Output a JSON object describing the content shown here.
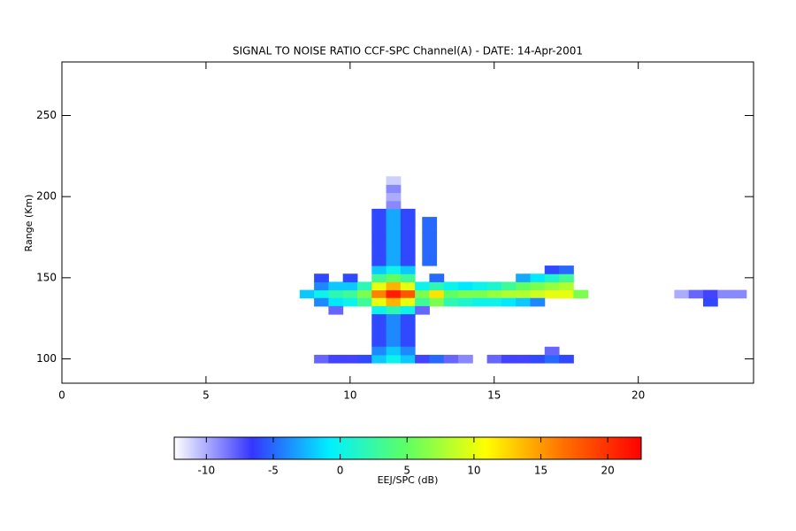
{
  "chart_data": {
    "type": "heatmap",
    "title": "SIGNAL TO NOISE RATIO CCF-SPC Channel(A) - DATE: 14-Apr-2001",
    "y_label": "Range (Km)",
    "xlim": [
      0,
      24
    ],
    "ylim": [
      85,
      283
    ],
    "xticks": [
      0,
      5,
      10,
      15,
      20
    ],
    "yticks": [
      100,
      150,
      200,
      250
    ],
    "cells": {
      "x": [
        8.5,
        9,
        9.5,
        10,
        10.5,
        11,
        11.5,
        12,
        12.5,
        13,
        13.5,
        14,
        14.5,
        15,
        15.5,
        16,
        16.5,
        17,
        17.5,
        18,
        9,
        9.5,
        10,
        10.5,
        11,
        11.5,
        12,
        12.5,
        13,
        13.5,
        14,
        14.5,
        15,
        15.5,
        16,
        16.5,
        17,
        17.5,
        9,
        10,
        11,
        11.5,
        12,
        13,
        16,
        16.5,
        17,
        17.5,
        11,
        11.5,
        12,
        17,
        17.5,
        9,
        9.5,
        10,
        10.5,
        11,
        11.5,
        12,
        12.5,
        13,
        13.5,
        14,
        14.5,
        15,
        15.5,
        16,
        16.5,
        9.5,
        11,
        11.5,
        12,
        12.5,
        11,
        11.5,
        12,
        11,
        11.5,
        12,
        11,
        11.5,
        12,
        11,
        11.5,
        12,
        9,
        9.5,
        10,
        10.5,
        11,
        11.5,
        12,
        12.5,
        13,
        13.5,
        14,
        15,
        15.5,
        16,
        16.5,
        17,
        17.5,
        11,
        11.5,
        12,
        17,
        11,
        11.5,
        12,
        11,
        11.5,
        12,
        11,
        11.5,
        12,
        11,
        11.5,
        12,
        11,
        11.5,
        12,
        11,
        11.5,
        12,
        11,
        11.5,
        12,
        12.75,
        12.75,
        12.75,
        12.75,
        12.75,
        12.75,
        11.5,
        11.5,
        11.5,
        11.5,
        21.5,
        22,
        22.5,
        23,
        23.5,
        22.5
      ],
      "y": [
        140,
        140,
        140,
        140,
        140,
        140,
        140,
        140,
        140,
        140,
        140,
        140,
        140,
        140,
        140,
        140,
        140,
        140,
        140,
        140,
        145,
        145,
        145,
        145,
        145,
        145,
        145,
        145,
        145,
        145,
        145,
        145,
        145,
        145,
        145,
        145,
        145,
        145,
        150,
        150,
        150,
        150,
        150,
        150,
        150,
        150,
        150,
        150,
        155,
        155,
        155,
        155,
        155,
        135,
        135,
        135,
        135,
        135,
        135,
        135,
        135,
        135,
        135,
        135,
        135,
        135,
        135,
        135,
        135,
        130,
        130,
        130,
        130,
        130,
        125,
        125,
        125,
        120,
        120,
        120,
        115,
        115,
        115,
        110,
        110,
        110,
        100,
        100,
        100,
        100,
        100,
        100,
        100,
        100,
        100,
        100,
        100,
        100,
        100,
        100,
        100,
        100,
        100,
        105,
        105,
        105,
        105,
        160,
        160,
        160,
        165,
        165,
        165,
        170,
        170,
        170,
        175,
        175,
        175,
        180,
        180,
        180,
        185,
        185,
        185,
        190,
        190,
        190,
        160,
        165,
        170,
        175,
        180,
        185,
        195,
        200,
        205,
        210,
        140,
        140,
        140,
        140,
        140,
        135
      ],
      "values": [
        -2,
        0,
        2,
        3,
        6,
        16,
        21,
        18,
        6,
        12,
        5,
        6,
        6,
        7,
        8,
        8,
        9,
        10,
        10,
        6,
        -4,
        -2,
        -2,
        2,
        10,
        14,
        10,
        0,
        2,
        0,
        -1,
        0,
        1,
        3,
        5,
        6,
        7,
        8,
        -6,
        -6,
        3,
        5,
        3,
        -5,
        -3,
        -1,
        1,
        3,
        -2,
        0,
        -2,
        -6,
        -5,
        -4,
        -1,
        0,
        3,
        10,
        14,
        10,
        3,
        6,
        2,
        1,
        0,
        0,
        -1,
        -2,
        -4,
        -8,
        0,
        2,
        0,
        -8,
        -6,
        -4,
        -6,
        -6,
        -4,
        -6,
        -6,
        -4,
        -6,
        -6,
        -4,
        -6,
        -8,
        -7,
        -7,
        -6,
        -2,
        0,
        -2,
        -7,
        -5,
        -8,
        -9,
        -8,
        -7,
        -7,
        -6,
        -5,
        -6,
        -4,
        -2,
        -4,
        -8,
        -6,
        -3,
        -6,
        -6,
        -3,
        -6,
        -6,
        -3,
        -6,
        -6,
        -3,
        -6,
        -6,
        -3,
        -6,
        -6,
        -3,
        -6,
        -6,
        -3,
        -6,
        -5,
        -5,
        -5,
        -5,
        -5,
        -5,
        -9,
        -10,
        -9,
        -11,
        -10,
        -8,
        -7,
        -9,
        -9,
        -6
      ]
    },
    "colorbar": {
      "label": "EEJ/SPC (dB)",
      "lim": [
        -12.4,
        22.5
      ],
      "ticks": [
        -10,
        -5,
        0,
        5,
        10,
        15,
        20
      ],
      "colors": [
        "#ffffff",
        "#3535ff",
        "#00f0ff",
        "#60ff60",
        "#ffff00",
        "#ff7000",
        "#ff0000"
      ]
    }
  }
}
